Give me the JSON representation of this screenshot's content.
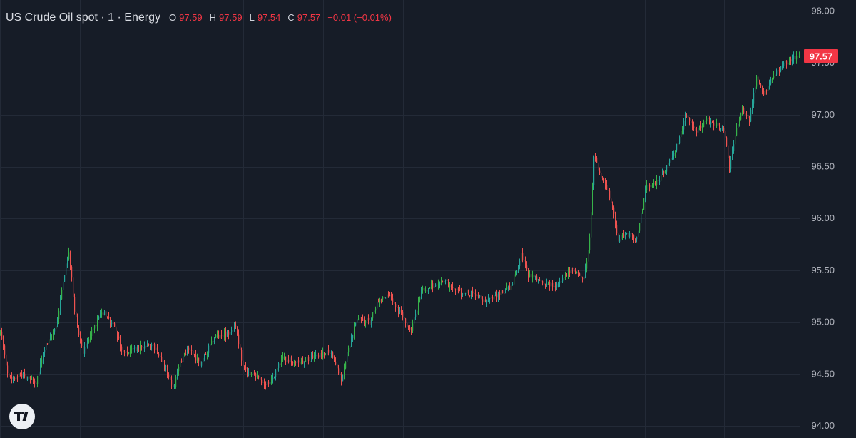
{
  "header": {
    "symbol": "US Crude Oil spot · 1 · Energy",
    "open_key": "O",
    "open": "97.59",
    "high_key": "H",
    "high": "97.59",
    "low_key": "L",
    "low": "97.54",
    "close_key": "C",
    "close": "97.57",
    "change": "−0.01 (−0.01%)"
  },
  "last_price_label": "97.57",
  "logo_icon": "tradingview-logo-icon",
  "colors": {
    "background": "#161c27",
    "grid": "#232a37",
    "up": "#26a69a",
    "up_bright": "#37b34a",
    "down": "#ef5350",
    "price_tag": "#f23645"
  },
  "chart_data": {
    "type": "candlestick",
    "title": "US Crude Oil spot · 1 · Energy",
    "xlabel": "",
    "ylabel": "",
    "ylim": [
      94.0,
      98.0
    ],
    "y_ticks": [
      "94.00",
      "94.50",
      "95.00",
      "95.50",
      "96.00",
      "96.50",
      "97.00",
      "97.50",
      "98.00"
    ],
    "last_price": 97.57,
    "grid": true,
    "price_path": [
      [
        0,
        94.9
      ],
      [
        12,
        94.45
      ],
      [
        30,
        94.5
      ],
      [
        50,
        94.42
      ],
      [
        62,
        94.75
      ],
      [
        78,
        94.95
      ],
      [
        88,
        95.4
      ],
      [
        96,
        95.7
      ],
      [
        104,
        95.1
      ],
      [
        116,
        94.7
      ],
      [
        130,
        94.95
      ],
      [
        145,
        95.1
      ],
      [
        160,
        94.95
      ],
      [
        172,
        94.7
      ],
      [
        190,
        94.75
      ],
      [
        212,
        94.8
      ],
      [
        230,
        94.6
      ],
      [
        242,
        94.35
      ],
      [
        252,
        94.6
      ],
      [
        264,
        94.75
      ],
      [
        280,
        94.6
      ],
      [
        300,
        94.85
      ],
      [
        320,
        94.9
      ],
      [
        330,
        94.95
      ],
      [
        340,
        94.55
      ],
      [
        362,
        94.45
      ],
      [
        378,
        94.4
      ],
      [
        395,
        94.65
      ],
      [
        420,
        94.62
      ],
      [
        445,
        94.68
      ],
      [
        462,
        94.72
      ],
      [
        478,
        94.45
      ],
      [
        490,
        94.8
      ],
      [
        500,
        95.05
      ],
      [
        518,
        95.0
      ],
      [
        530,
        95.2
      ],
      [
        545,
        95.25
      ],
      [
        560,
        95.1
      ],
      [
        575,
        94.9
      ],
      [
        590,
        95.3
      ],
      [
        605,
        95.35
      ],
      [
        622,
        95.4
      ],
      [
        640,
        95.3
      ],
      [
        660,
        95.28
      ],
      [
        680,
        95.2
      ],
      [
        700,
        95.28
      ],
      [
        716,
        95.35
      ],
      [
        730,
        95.65
      ],
      [
        740,
        95.45
      ],
      [
        760,
        95.38
      ],
      [
        780,
        95.35
      ],
      [
        800,
        95.5
      ],
      [
        818,
        95.42
      ],
      [
        826,
        95.8
      ],
      [
        832,
        96.6
      ],
      [
        840,
        96.45
      ],
      [
        855,
        96.2
      ],
      [
        866,
        95.8
      ],
      [
        880,
        95.85
      ],
      [
        892,
        95.8
      ],
      [
        905,
        96.3
      ],
      [
        920,
        96.35
      ],
      [
        935,
        96.5
      ],
      [
        950,
        96.75
      ],
      [
        962,
        97.0
      ],
      [
        975,
        96.85
      ],
      [
        990,
        96.95
      ],
      [
        1005,
        96.9
      ],
      [
        1015,
        96.85
      ],
      [
        1022,
        96.45
      ],
      [
        1030,
        96.8
      ],
      [
        1040,
        97.05
      ],
      [
        1050,
        96.95
      ],
      [
        1060,
        97.35
      ],
      [
        1070,
        97.2
      ],
      [
        1085,
        97.4
      ],
      [
        1100,
        97.5
      ],
      [
        1112,
        97.55
      ],
      [
        1120,
        97.57
      ]
    ]
  }
}
